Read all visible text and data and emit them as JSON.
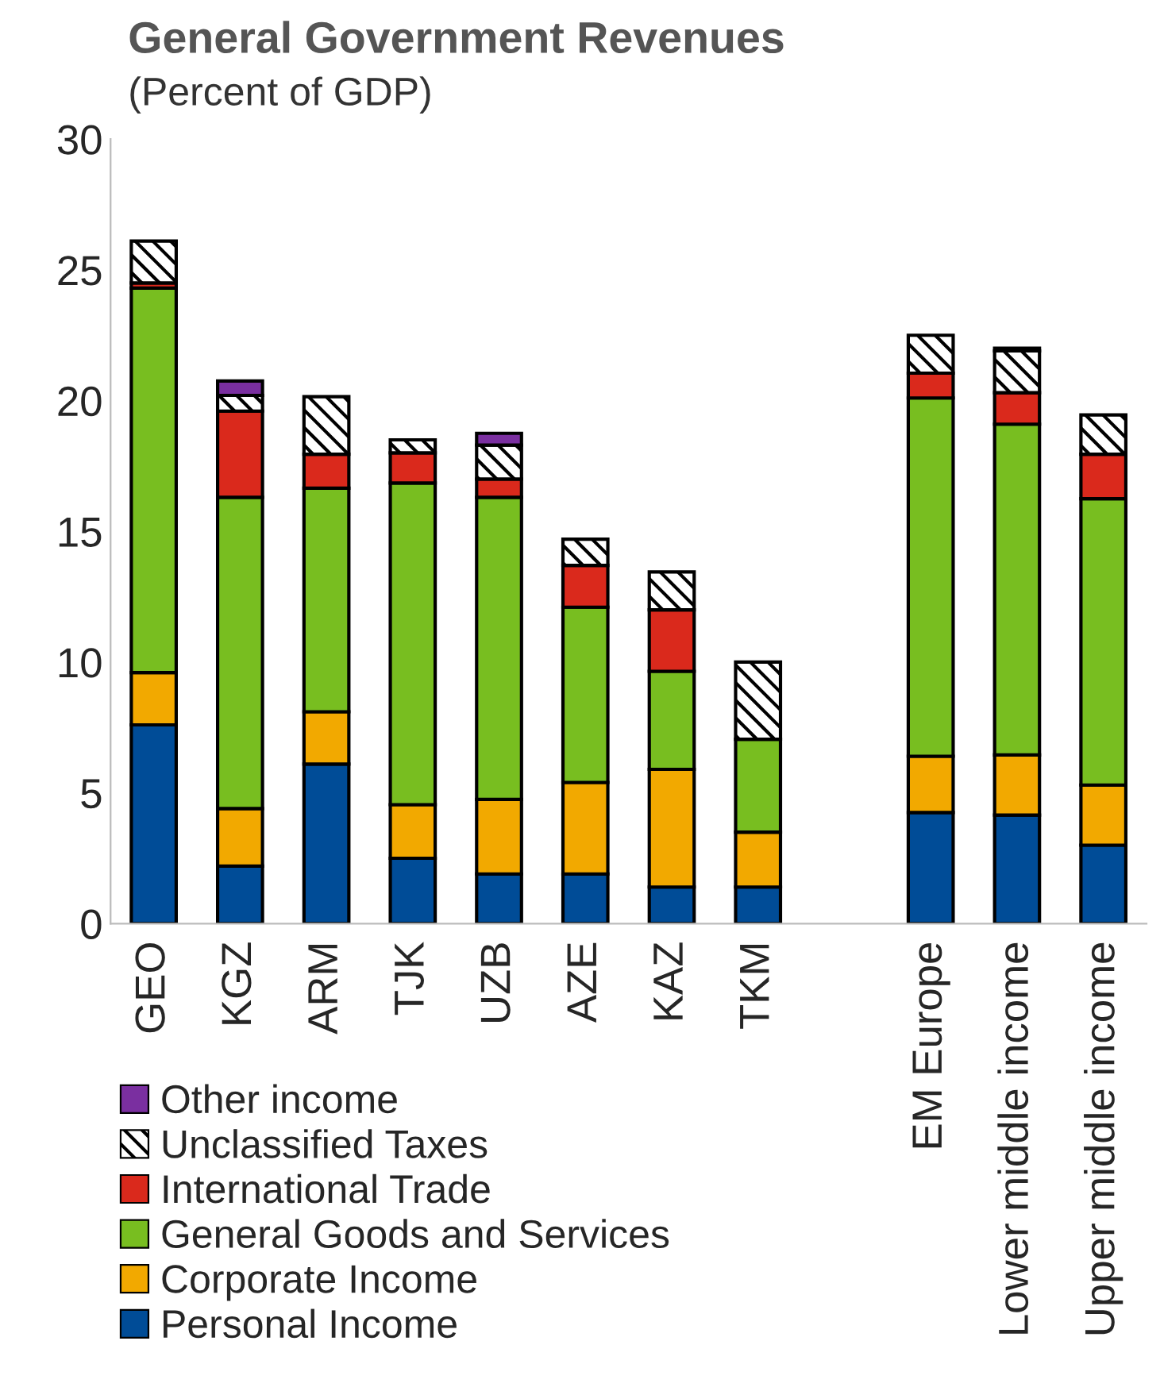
{
  "chart_data": {
    "type": "bar",
    "stacked": true,
    "title": "General Government Revenues",
    "subtitle": "(Percent of GDP)",
    "categories": [
      "GEO",
      "KGZ",
      "ARM",
      "TJK",
      "UZB",
      "AZE",
      "KAZ",
      "TKM",
      null,
      "EM Europe",
      "Lower middle income",
      "Upper middle income"
    ],
    "series": [
      {
        "name": "Personal Income",
        "color": "#004c97",
        "values": [
          7.6,
          2.2,
          6.1,
          2.5,
          1.9,
          1.9,
          1.4,
          1.4,
          null,
          4.25,
          4.15,
          3.0
        ]
      },
      {
        "name": "Corporate Income",
        "color": "#f2a900",
        "values": [
          2.0,
          2.2,
          2.0,
          2.05,
          2.85,
          3.5,
          4.5,
          2.1,
          null,
          2.15,
          2.3,
          2.3
        ]
      },
      {
        "name": "General Goods and Services",
        "color": "#78be20",
        "values": [
          14.7,
          11.9,
          8.55,
          12.3,
          11.55,
          6.7,
          3.75,
          3.55,
          null,
          13.7,
          12.65,
          10.95
        ]
      },
      {
        "name": "International Trade",
        "color": "#da291c",
        "values": [
          0.2,
          3.3,
          1.3,
          1.15,
          0.7,
          1.6,
          2.35,
          null,
          null,
          0.95,
          1.2,
          1.7
        ]
      },
      {
        "name": "Unclassified Taxes",
        "color": "#000000",
        "values": [
          1.6,
          0.6,
          2.2,
          0.5,
          1.3,
          1.0,
          1.45,
          2.95,
          null,
          1.45,
          1.6,
          1.5
        ]
      },
      {
        "name": "Other income",
        "color": "#7a2fa0",
        "values": [
          null,
          0.55,
          null,
          null,
          0.45,
          null,
          null,
          null,
          null,
          null,
          0.1,
          null
        ]
      }
    ],
    "ylim": [
      0,
      30
    ],
    "yticks": [
      0,
      5,
      10,
      15,
      20,
      25,
      30
    ],
    "grid": false,
    "legend": "bottom left"
  }
}
